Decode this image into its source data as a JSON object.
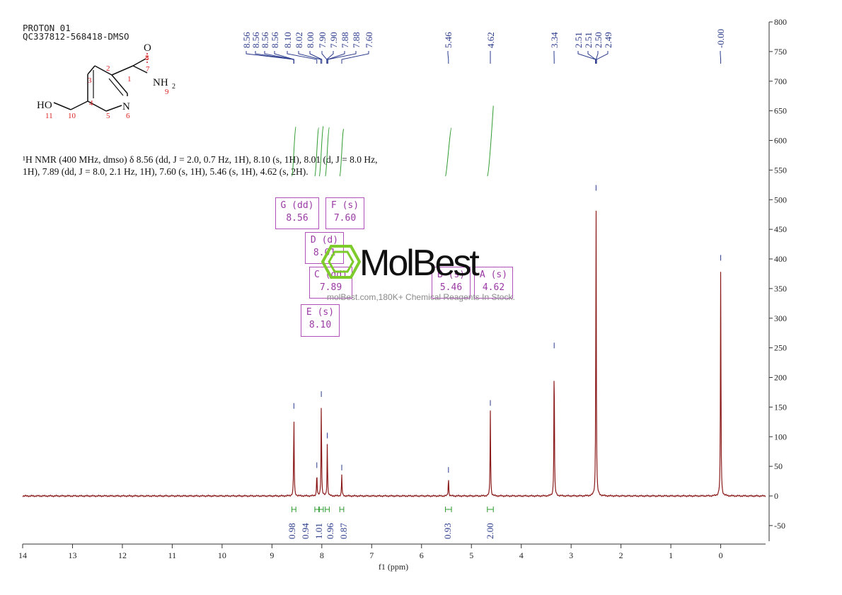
{
  "header": {
    "line1": "PROTON 01",
    "line2": "QC337812-568418-DMSO"
  },
  "summary": {
    "line1": "¹H NMR (400 MHz, dmso) δ 8.56 (dd, J = 2.0, 0.7 Hz, 1H), 8.10 (s, 1H), 8.01 (d, J = 8.0 Hz,",
    "line2": "1H), 7.89 (dd, J = 8.0, 2.1 Hz, 1H), 7.60 (s, 1H), 5.46 (s, 1H), 4.62 (s, 2H)."
  },
  "structure": {
    "atoms": {
      "O": "O",
      "N": "N",
      "HO": "HO",
      "NH": "NH",
      "sub2": "2"
    },
    "numbers": [
      "1",
      "2",
      "3",
      "4",
      "5",
      "6",
      "7",
      "8",
      "9",
      "10",
      "11"
    ]
  },
  "watermark": {
    "brand": "MolBest",
    "text": "molBest.com,180K+ Chemical Reagents In Stock."
  },
  "multiplets": [
    {
      "label": "G (dd)",
      "value": "8.56"
    },
    {
      "label": "F (s)",
      "value": "7.60"
    },
    {
      "label": "D (d)",
      "value": "8.01"
    },
    {
      "label": "C (dd)",
      "value": "7.89"
    },
    {
      "label": "B (s)",
      "value": "5.46"
    },
    {
      "label": "A (s)",
      "value": "4.62"
    },
    {
      "label": "E (s)",
      "value": "8.10"
    }
  ],
  "colors": {
    "spectrum": "#8b1a1a",
    "peak_labels": "#2a3a8c",
    "integrals": "#2e9a2e",
    "multiplet_boxes": "#b050b8",
    "axis": "#333333"
  },
  "chart_data": {
    "type": "line",
    "title": "PROTON 01",
    "xlabel": "f1 (ppm)",
    "ylabel": "",
    "xlim": [
      14,
      -0.9
    ],
    "ylim": [
      -80,
      800
    ],
    "x_reversed": true,
    "x_ticks": [
      14,
      13,
      12,
      11,
      10,
      9,
      8,
      7,
      6,
      5,
      4,
      3,
      2,
      1,
      0
    ],
    "y_ticks": [
      -50,
      0,
      50,
      100,
      150,
      200,
      250,
      300,
      350,
      400,
      450,
      500,
      550,
      600,
      650,
      700,
      750,
      800
    ],
    "peak_labels": [
      "8.56",
      "8.56",
      "8.56",
      "8.56",
      "8.10",
      "8.02",
      "8.00",
      "7.90",
      "7.90",
      "7.88",
      "7.88",
      "7.60",
      "5.46",
      "4.62",
      "3.34",
      "2.51",
      "2.51",
      "2.50",
      "2.49",
      "-0.00"
    ],
    "peaks": [
      {
        "ppm": 8.56,
        "height": 140
      },
      {
        "ppm": 8.1,
        "height": 40
      },
      {
        "ppm": 8.01,
        "height": 160
      },
      {
        "ppm": 7.89,
        "height": 90
      },
      {
        "ppm": 7.6,
        "height": 36
      },
      {
        "ppm": 5.46,
        "height": 32
      },
      {
        "ppm": 4.62,
        "height": 145
      },
      {
        "ppm": 3.34,
        "height": 242
      },
      {
        "ppm": 2.5,
        "height": 508
      },
      {
        "ppm": 0.0,
        "height": 390
      }
    ],
    "integrals": [
      {
        "from": 8.6,
        "to": 8.52,
        "value": "0.98"
      },
      {
        "from": 8.14,
        "to": 8.06,
        "value": "0.94"
      },
      {
        "from": 8.05,
        "to": 7.97,
        "value": "1.01"
      },
      {
        "from": 7.93,
        "to": 7.85,
        "value": "0.96"
      },
      {
        "from": 7.64,
        "to": 7.56,
        "value": "0.87"
      },
      {
        "from": 5.52,
        "to": 5.4,
        "value": "0.93"
      },
      {
        "from": 4.68,
        "to": 4.56,
        "value": "2.00"
      }
    ]
  }
}
